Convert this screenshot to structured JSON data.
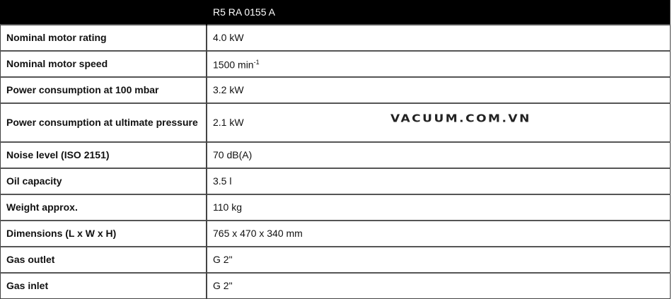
{
  "header": {
    "model": "R5 RA 0155 A"
  },
  "rows": [
    {
      "label": "Nominal motor rating",
      "value": "4.0 kW"
    },
    {
      "label": "Nominal motor speed",
      "value": "1500 min",
      "sup": "-1"
    },
    {
      "label": "Power consumption at 100 mbar",
      "value": "3.2 kW"
    },
    {
      "label": "Power consumption at ultimate pressure",
      "value": "2.1 kW"
    },
    {
      "label": "Noise level (ISO 2151)",
      "value": "70 dB(A)"
    },
    {
      "label": "Oil capacity",
      "value": "3.5 l"
    },
    {
      "label": "Weight approx.",
      "value": "110 kg"
    },
    {
      "label": "Dimensions (L x W x H)",
      "value": "765 x 470 x 340 mm"
    },
    {
      "label": "Gas outlet",
      "value": "G 2\""
    },
    {
      "label": "Gas inlet",
      "value": "G 2\""
    }
  ],
  "watermark": "VACUUM.COM.VN"
}
